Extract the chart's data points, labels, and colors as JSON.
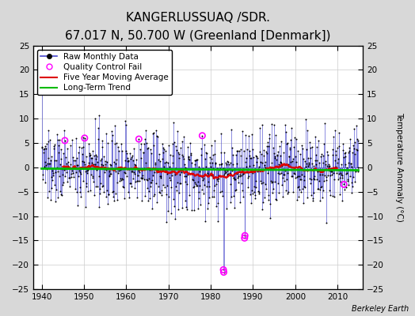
{
  "title": "KANGERLUSSUAQ /SDR.",
  "subtitle": "67.017 N, 50.700 W (Greenland [Denmark])",
  "ylabel": "Temperature Anomaly (°C)",
  "credit": "Berkeley Earth",
  "xlim": [
    1938,
    2016
  ],
  "ylim": [
    -25,
    25
  ],
  "yticks": [
    -25,
    -20,
    -15,
    -10,
    -5,
    0,
    5,
    10,
    15,
    20,
    25
  ],
  "xticks": [
    1940,
    1950,
    1960,
    1970,
    1980,
    1990,
    2000,
    2010
  ],
  "fig_bg_color": "#d8d8d8",
  "plot_bg_color": "#ffffff",
  "stem_color": "#4444cc",
  "dot_color": "#000000",
  "ma_color": "#dd0000",
  "trend_color": "#00bb00",
  "qc_color": "#ff00ff",
  "title_fontsize": 11,
  "subtitle_fontsize": 8.5,
  "legend_fontsize": 7.5
}
